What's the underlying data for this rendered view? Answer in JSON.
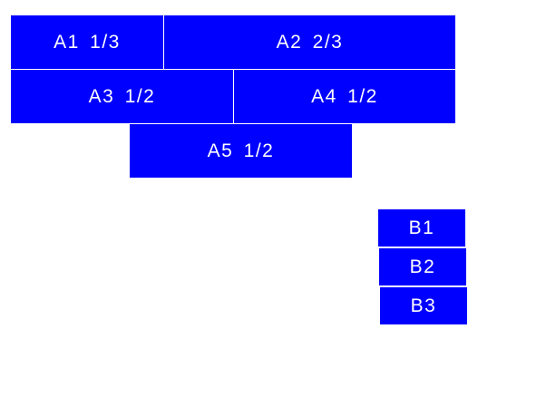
{
  "color": "#0000ff",
  "group_a": [
    {
      "label": "A1 1/3"
    },
    {
      "label": "A2 2/3"
    },
    {
      "label": "A3 1/2"
    },
    {
      "label": "A4 1/2"
    },
    {
      "label": "A5 1/2"
    }
  ],
  "group_b": [
    {
      "label": "B1"
    },
    {
      "label": "B2"
    },
    {
      "label": "B3"
    }
  ]
}
